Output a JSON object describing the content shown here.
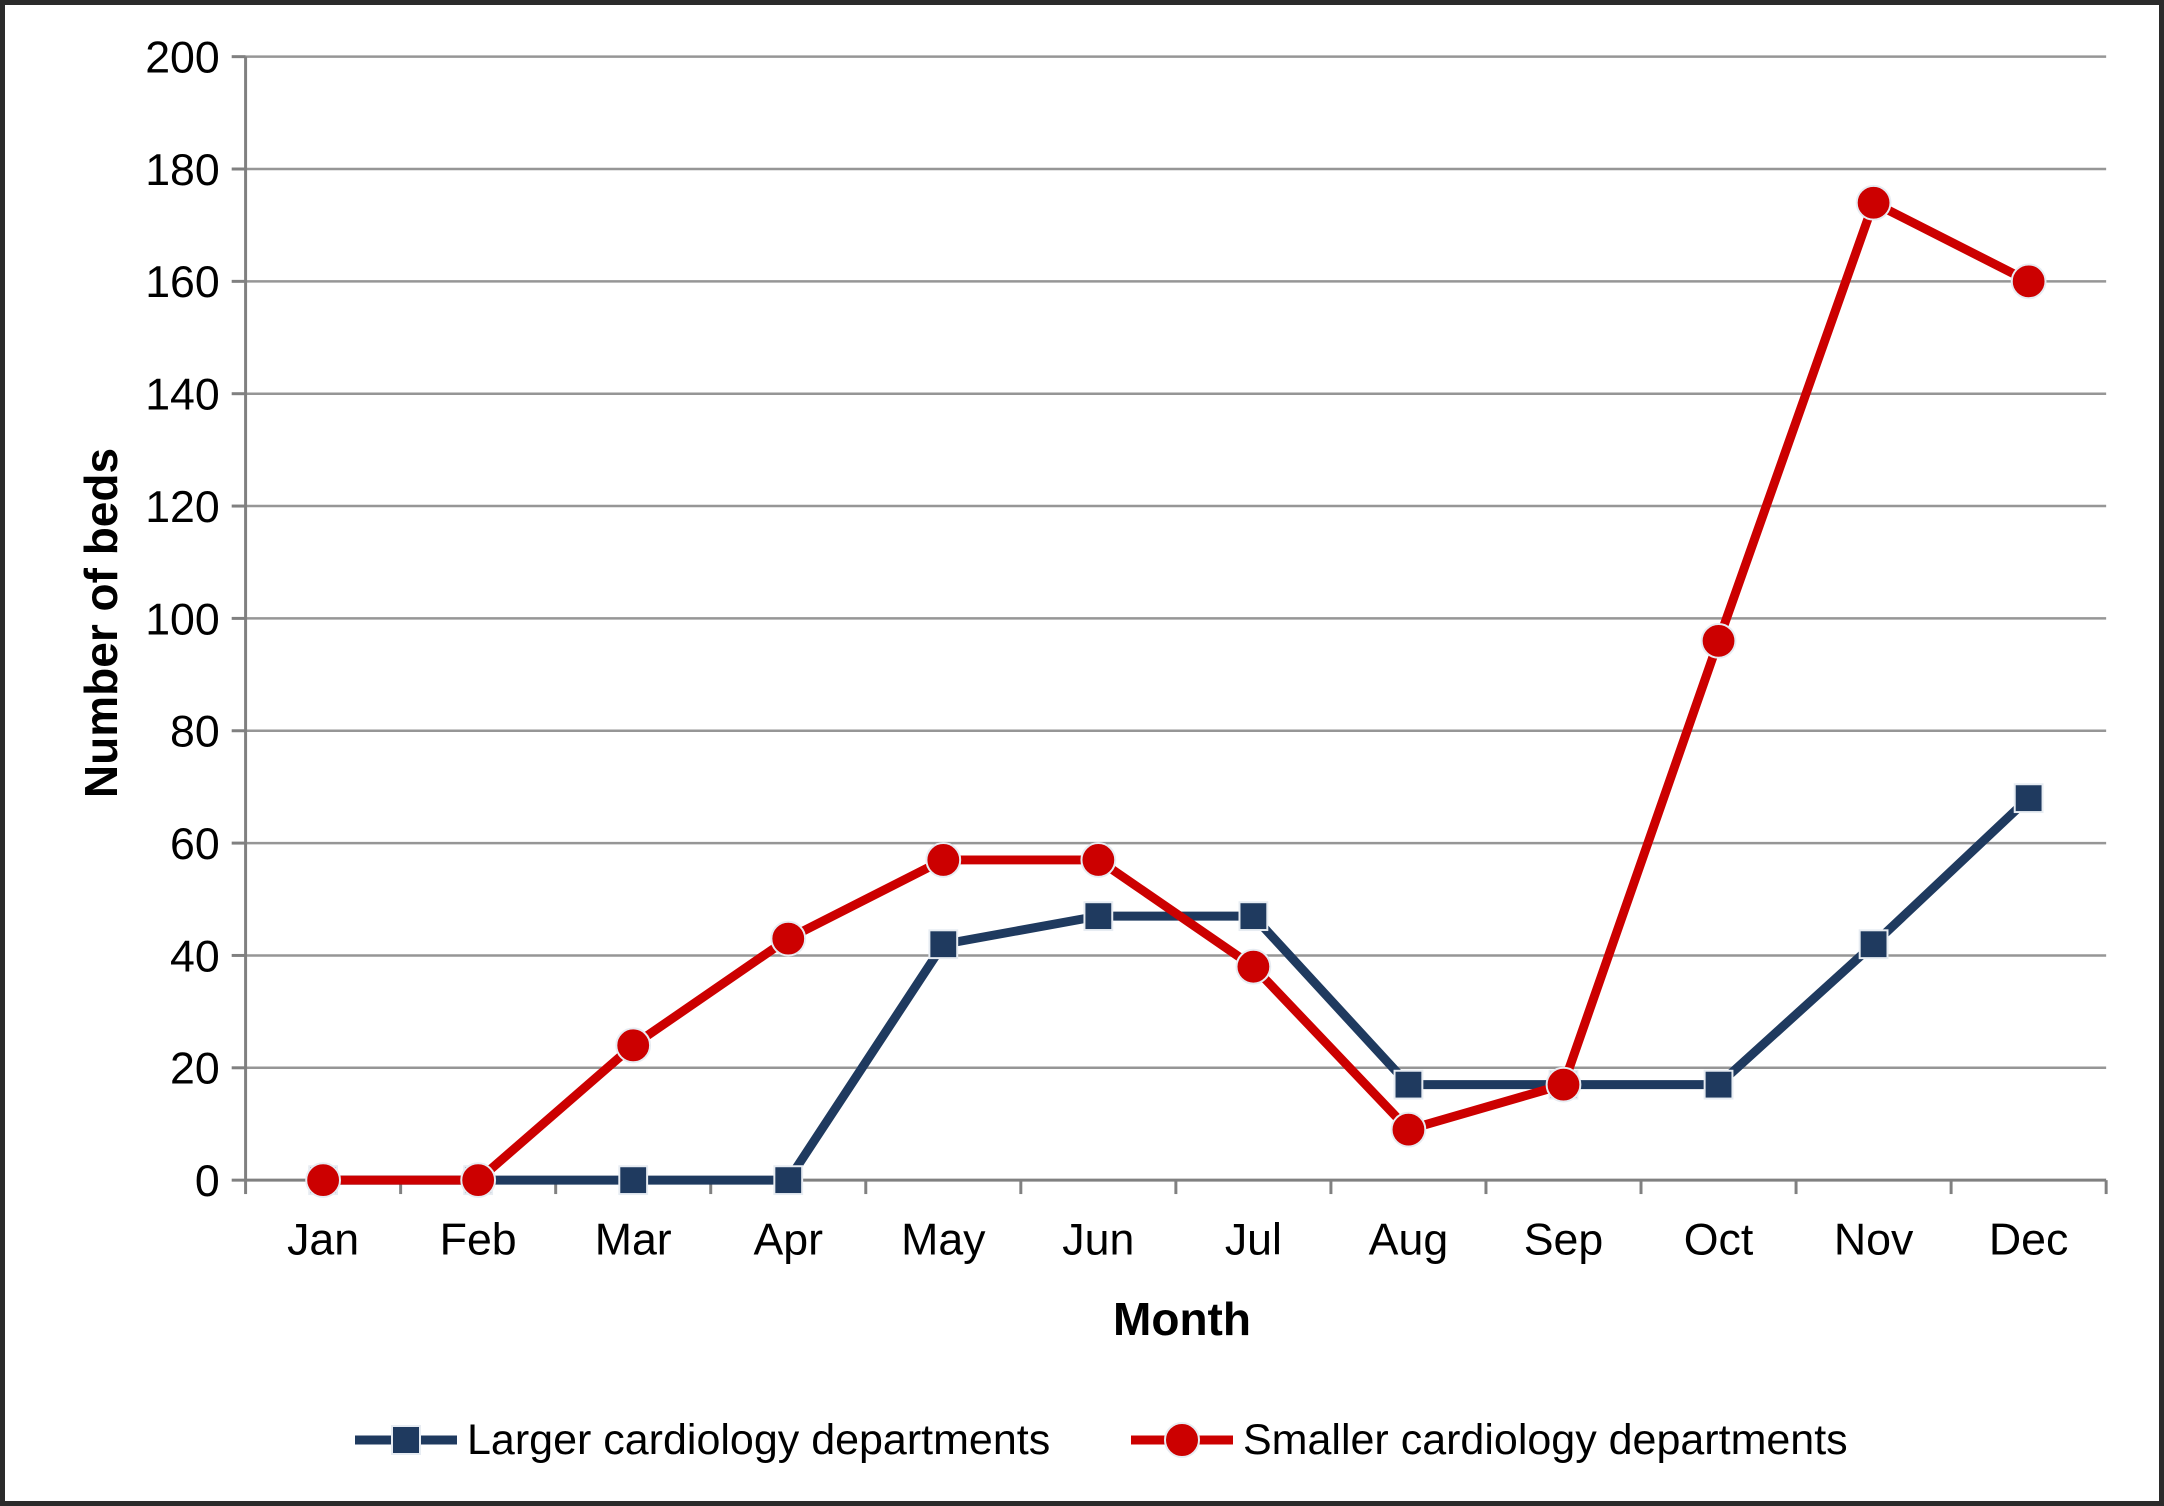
{
  "chart_data": {
    "type": "line",
    "title": "",
    "categories": [
      "Jan",
      "Feb",
      "Mar",
      "Apr",
      "May",
      "Jun",
      "Jul",
      "Aug",
      "Sep",
      "Oct",
      "Nov",
      "Dec"
    ],
    "series": [
      {
        "name": "Larger cardiology departments",
        "marker": "square",
        "color": "#1F3A5F",
        "values": [
          0,
          0,
          0,
          0,
          42,
          47,
          47,
          17,
          17,
          17,
          42,
          68
        ]
      },
      {
        "name": "Smaller cardiology departments",
        "marker": "circle",
        "color": "#CC0000",
        "values": [
          0,
          0,
          24,
          43,
          57,
          57,
          38,
          9,
          17,
          96,
          174,
          160
        ]
      }
    ],
    "xlabel": "Month",
    "ylabel": "Number of beds",
    "ylim": [
      0,
      200
    ],
    "ytick_step": 20,
    "y_tick_labels": [
      "0",
      "20",
      "40",
      "60",
      "80",
      "100",
      "120",
      "140",
      "160",
      "180",
      "200"
    ],
    "grid": "horizontal",
    "legend_position": "bottom"
  },
  "colors": {
    "gridline": "#969696",
    "axis": "#808080",
    "marker_outline": "#E7ECF2",
    "frame": "#2B2B2B",
    "text": "#000000"
  }
}
